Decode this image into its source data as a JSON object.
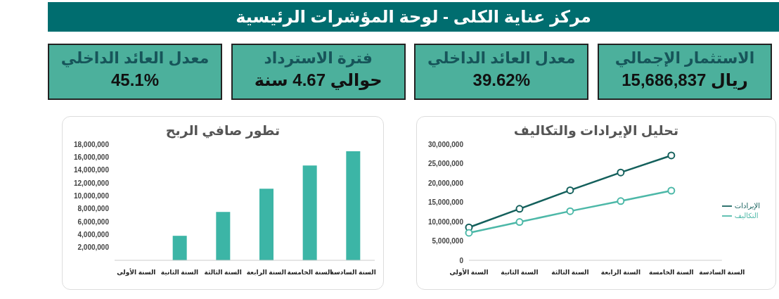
{
  "chart_data": [
    {
      "type": "other",
      "title": "مركز عناية الكلى - لوحة المؤشرات الرئيسية",
      "annotations": [
        "الاستثمار الإجمالي",
        "ريال 15,686,837",
        "معدل العائد الداخلي",
        "39.62%",
        "فترة الاسترداد",
        "حوالي 4.67 سنة",
        "معدل العائد الداخلي",
        "45.1%"
      ]
    },
    {
      "type": "bar",
      "title": "تطور صافي الربح",
      "categories": [
        "السنة الأولى",
        "السنة الثانية",
        "السنة الثالثة",
        "السنة الرابعة",
        "السنة الخامسة",
        "السنة السادسة"
      ],
      "values": [
        null,
        3800000,
        7500000,
        11100000,
        14700000,
        16900000
      ],
      "color": "#3cb5a6",
      "ylim": [
        0,
        18000000
      ],
      "yticks": [
        {
          "value": 2000000,
          "label": "2,000,000"
        },
        {
          "value": 4000000,
          "label": "4,000,000"
        },
        {
          "value": 6000000,
          "label": "6,000,000"
        },
        {
          "value": 8000000,
          "label": "8,000,000"
        },
        {
          "value": 10000000,
          "label": "10,000,000"
        },
        {
          "value": 12000000,
          "label": "12,000,000"
        },
        {
          "value": 14000000,
          "label": "14,000,000"
        },
        {
          "value": 16000000,
          "label": "16,000,000"
        },
        {
          "value": 18000000,
          "label": "18,000,000"
        }
      ],
      "grid": false,
      "legend": false
    },
    {
      "type": "line",
      "title": "تحليل الإيرادات والتكاليف",
      "categories": [
        "السنة الأولى",
        "السنة الثانية",
        "السنة الثالثة",
        "السنة الرابعة",
        "السنة الخامسة",
        "السنة السادسة"
      ],
      "series": [
        {
          "name": "الإيرادات",
          "color": "#14605c",
          "values": [
            8500000,
            13300000,
            18100000,
            22700000,
            27100000,
            null
          ]
        },
        {
          "name": "التكاليف",
          "color": "#4db8a8",
          "values": [
            7100000,
            9900000,
            12700000,
            15300000,
            18000000,
            null
          ]
        }
      ],
      "ylim": [
        0,
        30000000
      ],
      "yticks": [
        0,
        {
          "value": 5000000,
          "label": "5,000,000"
        },
        {
          "value": 10000000,
          "label": "10,000,000"
        },
        {
          "value": 15000000,
          "label": "15,000,000"
        },
        {
          "value": 20000000,
          "label": "20,000,000"
        },
        {
          "value": 25000000,
          "label": "25,000,000"
        },
        {
          "value": 30000000,
          "label": "30,000,000"
        }
      ],
      "grid": false,
      "legend": "right",
      "marker": "circle",
      "line_style": "solid"
    }
  ]
}
